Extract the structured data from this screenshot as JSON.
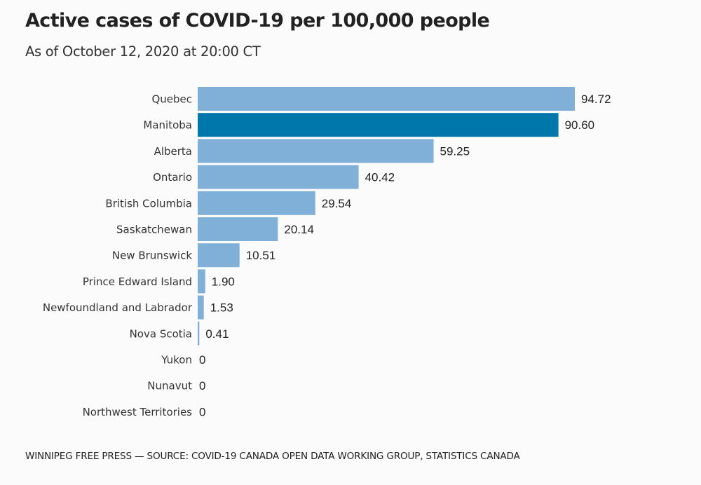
{
  "header": {
    "title": "Active cases of COVID-19 per 100,000 people",
    "subtitle": "As of October 12, 2020 at 20:00 CT"
  },
  "footer": {
    "source": "WINNIPEG FREE PRESS — SOURCE: COVID-19 CANADA OPEN DATA WORKING GROUP, STATISTICS CANADA"
  },
  "colors": {
    "bar": "#80afd8",
    "highlight": "#0077aa",
    "label": "#333333",
    "value": "#222222"
  },
  "chart_data": {
    "type": "bar",
    "orientation": "horizontal",
    "title": "Active cases of COVID-19 per 100,000 people",
    "subtitle": "As of October 12, 2020 at 20:00 CT",
    "xlabel": "",
    "ylabel": "",
    "xlim": [
      0,
      94.72
    ],
    "grid": false,
    "highlight": "Manitoba",
    "categories": [
      "Quebec",
      "Manitoba",
      "Alberta",
      "Ontario",
      "British Columbia",
      "Saskatchewan",
      "New Brunswick",
      "Prince Edward Island",
      "Newfoundland and Labrador",
      "Nova Scotia",
      "Yukon",
      "Nunavut",
      "Northwest Territories"
    ],
    "values": [
      94.72,
      90.6,
      59.25,
      40.42,
      29.54,
      20.14,
      10.51,
      1.9,
      1.53,
      0.41,
      0,
      0,
      0
    ],
    "value_labels": [
      "94.72",
      "90.60",
      "59.25",
      "40.42",
      "29.54",
      "20.14",
      "10.51",
      "1.90",
      "1.53",
      "0.41",
      "0",
      "0",
      "0"
    ]
  }
}
